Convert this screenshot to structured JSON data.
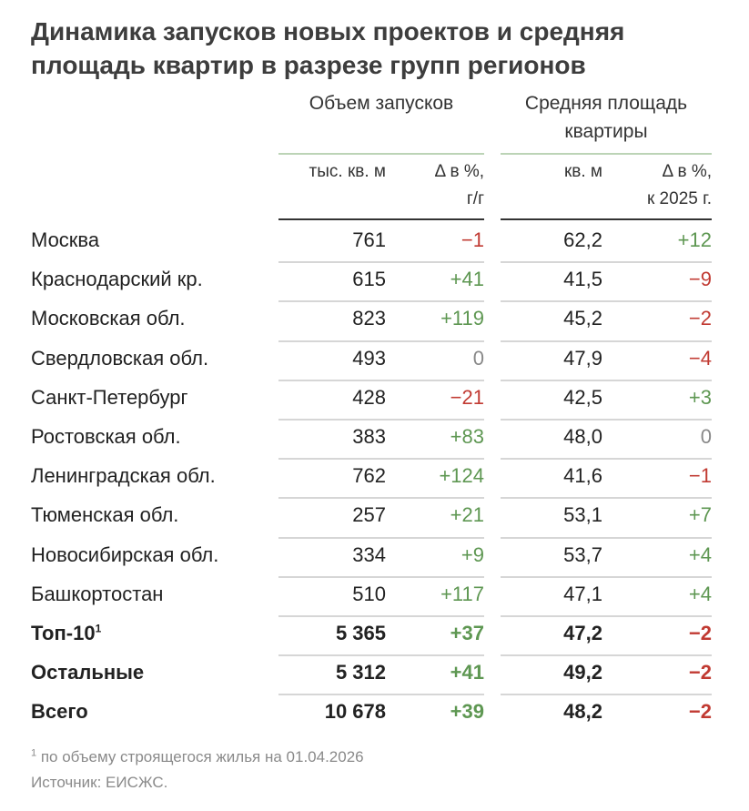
{
  "title_lines": [
    "Динамика запусков новых проектов и средняя",
    "площадь квартир в разрезе групп регионов"
  ],
  "groups": {
    "volume": "Объем запусков",
    "area_line1": "Средняя площадь",
    "area_line2": "квартиры"
  },
  "subheaders": {
    "vol_unit": "тыс. кв. м",
    "vol_delta_1": "Δ в %,",
    "vol_delta_2": "г/г",
    "area_unit": "кв. м",
    "area_delta_1": "Δ в %,",
    "area_delta_2": "к 2025 г."
  },
  "colors": {
    "positive": "#5e9752",
    "negative": "#c13a32",
    "zero": "#888888",
    "group_line": "#bcd4b6"
  },
  "chart_data": {
    "type": "table",
    "title": "Динамика запусков новых проектов и средняя площадь квартир в разрезе групп регионов",
    "columns": [
      "Объем запусков, тыс. кв. м",
      "Объем запусков, Δ в %, г/г",
      "Средняя площадь квартиры, кв. м",
      "Средняя площадь квартиры, Δ в %, к 2025 г."
    ],
    "rows": [
      {
        "region": "Москва",
        "sup": "",
        "volume": "761",
        "vol_delta": "−1",
        "area": "62,2",
        "area_delta": "+12",
        "bold": false
      },
      {
        "region": "Краснодарский кр.",
        "sup": "",
        "volume": "615",
        "vol_delta": "+41",
        "area": "41,5",
        "area_delta": "−9",
        "bold": false
      },
      {
        "region": "Московская обл.",
        "sup": "",
        "volume": "823",
        "vol_delta": "+119",
        "area": "45,2",
        "area_delta": "−2",
        "bold": false
      },
      {
        "region": "Свердловская обл.",
        "sup": "",
        "volume": "493",
        "vol_delta": "0",
        "area": "47,9",
        "area_delta": "−4",
        "bold": false
      },
      {
        "region": "Санкт-Петербург",
        "sup": "",
        "volume": "428",
        "vol_delta": "−21",
        "area": "42,5",
        "area_delta": "+3",
        "bold": false
      },
      {
        "region": "Ростовская обл.",
        "sup": "",
        "volume": "383",
        "vol_delta": "+83",
        "area": "48,0",
        "area_delta": "0",
        "bold": false
      },
      {
        "region": "Ленинградская обл.",
        "sup": "",
        "volume": "762",
        "vol_delta": "+124",
        "area": "41,6",
        "area_delta": "−1",
        "bold": false
      },
      {
        "region": "Тюменская обл.",
        "sup": "",
        "volume": "257",
        "vol_delta": "+21",
        "area": "53,1",
        "area_delta": "+7",
        "bold": false
      },
      {
        "region": "Новосибирская обл.",
        "sup": "",
        "volume": "334",
        "vol_delta": "+9",
        "area": "53,7",
        "area_delta": "+4",
        "bold": false
      },
      {
        "region": "Башкортостан",
        "sup": "",
        "volume": "510",
        "vol_delta": "+117",
        "area": "47,1",
        "area_delta": "+4",
        "bold": false
      },
      {
        "region": "Топ-10",
        "sup": "1",
        "volume": "5 365",
        "vol_delta": "+37",
        "area": "47,2",
        "area_delta": "−2",
        "bold": true
      },
      {
        "region": "Остальные",
        "sup": "",
        "volume": "5 312",
        "vol_delta": "+41",
        "area": "49,2",
        "area_delta": "−2",
        "bold": true
      },
      {
        "region": "Всего",
        "sup": "",
        "volume": "10 678",
        "vol_delta": "+39",
        "area": "48,2",
        "area_delta": "−2",
        "bold": true
      }
    ]
  },
  "footnote": {
    "mark": "1",
    "text": " по объему строящегося жилья на 01.04.2026"
  },
  "source": "Источник: ЕИСЖС."
}
